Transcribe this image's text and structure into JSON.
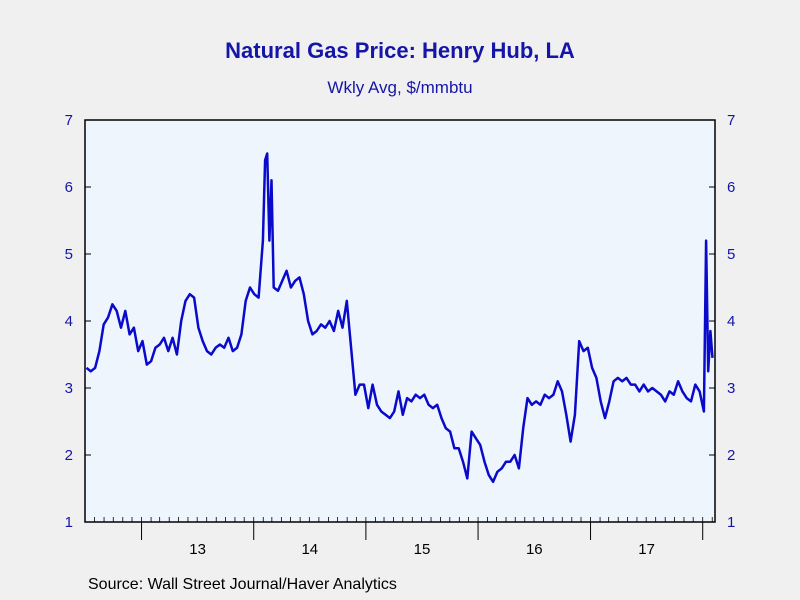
{
  "colors": {
    "background": "#f0f0f0",
    "plot_area": "#eef5fd",
    "line": "#0a0acb",
    "text": "#1515a8"
  },
  "source": "Source:  Wall Street Journal/Haver Analytics",
  "chart_data": {
    "type": "line",
    "title": "Natural Gas Price: Henry Hub, LA",
    "subtitle": "Wkly Avg, $/mmbtu",
    "xlabel": "",
    "ylabel": "",
    "ylim": [
      1,
      7
    ],
    "y_ticks": [
      1,
      2,
      3,
      4,
      5,
      6,
      7
    ],
    "y_axis_sides": "left-and-right",
    "x_tick_labels": [
      "13",
      "14",
      "15",
      "16",
      "17"
    ],
    "grid": false,
    "legend": "none",
    "series": [
      {
        "x": [
          "2012-07-06",
          "2012-07-20",
          "2012-08-03",
          "2012-08-17",
          "2012-08-31",
          "2012-09-14",
          "2012-09-28",
          "2012-10-12",
          "2012-10-26",
          "2012-11-09",
          "2012-11-23",
          "2012-12-07",
          "2012-12-21",
          "2013-01-04",
          "2013-01-18",
          "2013-02-01",
          "2013-02-15",
          "2013-03-01",
          "2013-03-15",
          "2013-03-29",
          "2013-04-12",
          "2013-04-26",
          "2013-05-10",
          "2013-05-24",
          "2013-06-07",
          "2013-06-21",
          "2013-07-05",
          "2013-07-19",
          "2013-08-02",
          "2013-08-16",
          "2013-08-30",
          "2013-09-13",
          "2013-09-27",
          "2013-10-11",
          "2013-10-25",
          "2013-11-08",
          "2013-11-22",
          "2013-12-06",
          "2013-12-20",
          "2014-01-03",
          "2014-01-17",
          "2014-01-31",
          "2014-02-07",
          "2014-02-14",
          "2014-02-21",
          "2014-02-28",
          "2014-03-07",
          "2014-03-21",
          "2014-04-04",
          "2014-04-18",
          "2014-05-02",
          "2014-05-16",
          "2014-05-30",
          "2014-06-13",
          "2014-06-27",
          "2014-07-11",
          "2014-07-25",
          "2014-08-08",
          "2014-08-22",
          "2014-09-05",
          "2014-09-19",
          "2014-10-03",
          "2014-10-17",
          "2014-10-31",
          "2014-11-14",
          "2014-11-28",
          "2014-12-12",
          "2014-12-26",
          "2015-01-09",
          "2015-01-23",
          "2015-02-06",
          "2015-02-20",
          "2015-03-06",
          "2015-03-20",
          "2015-04-03",
          "2015-04-17",
          "2015-05-01",
          "2015-05-15",
          "2015-05-29",
          "2015-06-12",
          "2015-06-26",
          "2015-07-10",
          "2015-07-24",
          "2015-08-07",
          "2015-08-21",
          "2015-09-04",
          "2015-09-18",
          "2015-10-02",
          "2015-10-16",
          "2015-10-30",
          "2015-11-13",
          "2015-11-27",
          "2015-12-11",
          "2015-12-25",
          "2016-01-08",
          "2016-01-22",
          "2016-02-05",
          "2016-02-19",
          "2016-03-04",
          "2016-03-18",
          "2016-04-01",
          "2016-04-15",
          "2016-04-29",
          "2016-05-13",
          "2016-05-27",
          "2016-06-10",
          "2016-06-24",
          "2016-07-08",
          "2016-07-22",
          "2016-08-05",
          "2016-08-19",
          "2016-09-02",
          "2016-09-16",
          "2016-09-30",
          "2016-10-14",
          "2016-10-28",
          "2016-11-11",
          "2016-11-25",
          "2016-12-09",
          "2016-12-23",
          "2017-01-06",
          "2017-01-20",
          "2017-02-03",
          "2017-02-17",
          "2017-03-03",
          "2017-03-17",
          "2017-03-31",
          "2017-04-14",
          "2017-04-28",
          "2017-05-12",
          "2017-05-26",
          "2017-06-09",
          "2017-06-23",
          "2017-07-07",
          "2017-07-21",
          "2017-08-04",
          "2017-08-18",
          "2017-09-01",
          "2017-09-15",
          "2017-09-29",
          "2017-10-13",
          "2017-10-27",
          "2017-11-10",
          "2017-11-24",
          "2017-12-08",
          "2017-12-22",
          "2018-01-05",
          "2018-01-12",
          "2018-01-19",
          "2018-01-26",
          "2018-02-02"
        ],
        "values": [
          3.3,
          3.25,
          3.3,
          3.55,
          3.95,
          4.05,
          4.25,
          4.15,
          3.9,
          4.15,
          3.8,
          3.9,
          3.55,
          3.7,
          3.35,
          3.4,
          3.6,
          3.65,
          3.75,
          3.55,
          3.75,
          3.5,
          4.0,
          4.3,
          4.4,
          4.35,
          3.9,
          3.7,
          3.55,
          3.5,
          3.6,
          3.65,
          3.6,
          3.75,
          3.55,
          3.6,
          3.8,
          4.3,
          4.5,
          4.4,
          4.35,
          5.2,
          6.4,
          6.5,
          5.2,
          6.1,
          4.5,
          4.45,
          4.6,
          4.75,
          4.5,
          4.6,
          4.65,
          4.4,
          4.0,
          3.8,
          3.85,
          3.95,
          3.9,
          4.0,
          3.85,
          4.15,
          3.9,
          4.3,
          3.6,
          2.9,
          3.05,
          3.05,
          2.7,
          3.05,
          2.75,
          2.65,
          2.6,
          2.55,
          2.65,
          2.95,
          2.6,
          2.85,
          2.8,
          2.9,
          2.85,
          2.9,
          2.75,
          2.7,
          2.75,
          2.55,
          2.4,
          2.35,
          2.1,
          2.1,
          1.9,
          1.65,
          2.35,
          2.25,
          2.15,
          1.9,
          1.7,
          1.6,
          1.75,
          1.8,
          1.9,
          1.9,
          2.0,
          1.8,
          2.4,
          2.85,
          2.75,
          2.8,
          2.75,
          2.9,
          2.85,
          2.9,
          3.1,
          2.95,
          2.6,
          2.2,
          2.6,
          3.7,
          3.55,
          3.6,
          3.3,
          3.15,
          2.8,
          2.55,
          2.8,
          3.1,
          3.15,
          3.1,
          3.15,
          3.05,
          3.05,
          2.95,
          3.05,
          2.95,
          3.0,
          2.95,
          2.9,
          2.8,
          2.95,
          2.9,
          3.1,
          2.95,
          2.85,
          2.8,
          3.05,
          2.95,
          2.65,
          5.2,
          3.25,
          3.85,
          3.45
        ]
      }
    ]
  }
}
